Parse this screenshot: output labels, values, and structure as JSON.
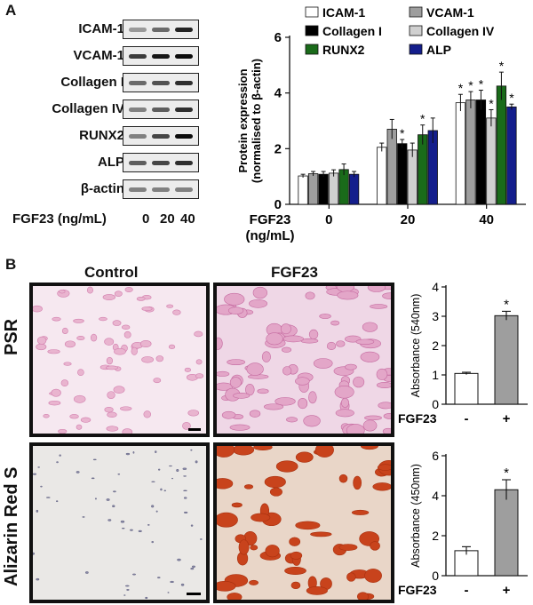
{
  "panel_a": {
    "letter": "A",
    "blot_rows": [
      {
        "label": "ICAM-1",
        "bands": [
          0.35,
          0.55,
          0.85
        ]
      },
      {
        "label": "VCAM-1",
        "bands": [
          0.75,
          0.9,
          0.95
        ]
      },
      {
        "label": "Collagen I",
        "bands": [
          0.55,
          0.65,
          0.8
        ]
      },
      {
        "label": "Collagen IV",
        "bands": [
          0.45,
          0.6,
          0.8
        ]
      },
      {
        "label": "RUNX2",
        "bands": [
          0.45,
          0.7,
          0.95
        ]
      },
      {
        "label": "ALP",
        "bands": [
          0.6,
          0.7,
          0.8
        ]
      },
      {
        "label": "β-actin",
        "bands": [
          0.45,
          0.45,
          0.45
        ]
      }
    ],
    "dose_axis_label": "FGF23 (ng/mL)",
    "dose_ticks": [
      "0",
      "20",
      "40"
    ]
  },
  "panel_b": {
    "letter": "B",
    "col_control": "Control",
    "col_fgf23": "FGF23",
    "row_psr": "PSR",
    "row_ars": "Alizarin Red S"
  },
  "chart_data": [
    {
      "type": "bar",
      "ylabel": "Protein expression\n(normalised to β-actin)",
      "xlabel": "FGF23\n(ng/mL)",
      "categories": [
        "0",
        "20",
        "40"
      ],
      "ylim": [
        0,
        6
      ],
      "yticks": [
        "0",
        "2",
        "4",
        "6"
      ],
      "series": [
        {
          "name": "ICAM-1",
          "color": "#ffffff",
          "values": [
            1.02,
            2.05,
            3.65
          ],
          "errors": [
            0.06,
            0.15,
            0.3
          ],
          "sig": [
            "",
            "",
            "*"
          ]
        },
        {
          "name": "VCAM-1",
          "color": "#9e9e9e",
          "values": [
            1.1,
            2.7,
            3.75
          ],
          "errors": [
            0.08,
            0.35,
            0.3
          ],
          "sig": [
            "",
            "",
            "*"
          ]
        },
        {
          "name": "Collagen I",
          "color": "#000000",
          "values": [
            1.08,
            2.18,
            3.75
          ],
          "errors": [
            0.1,
            0.15,
            0.35
          ],
          "sig": [
            "",
            "*",
            "*"
          ]
        },
        {
          "name": "Collagen IV",
          "color": "#d0d0d0",
          "values": [
            1.12,
            1.95,
            3.1
          ],
          "errors": [
            0.12,
            0.25,
            0.3
          ],
          "sig": [
            "",
            "",
            "*"
          ]
        },
        {
          "name": "RUNX2",
          "color": "#1a6b1a",
          "values": [
            1.25,
            2.5,
            4.25
          ],
          "errors": [
            0.2,
            0.35,
            0.5
          ],
          "sig": [
            "",
            "*",
            "*"
          ]
        },
        {
          "name": "ALP",
          "color": "#141e8c",
          "values": [
            1.08,
            2.65,
            3.5
          ],
          "errors": [
            0.1,
            0.45,
            0.1
          ],
          "sig": [
            "",
            "",
            "*"
          ]
        }
      ]
    },
    {
      "type": "bar",
      "ylabel": "Absorbance (540nm)",
      "xlabel": "FGF23",
      "categories": [
        "-",
        "+"
      ],
      "values": [
        1.05,
        3.02
      ],
      "errors": [
        0.04,
        0.15
      ],
      "sig": [
        "",
        "*"
      ],
      "colors": [
        "#ffffff",
        "#9e9e9e"
      ],
      "ylim": [
        0,
        4
      ],
      "yticks": [
        "0",
        "1",
        "2",
        "3",
        "4"
      ]
    },
    {
      "type": "bar",
      "ylabel": "Absorbance (450nm)",
      "xlabel": "FGF23",
      "categories": [
        "-",
        "+"
      ],
      "values": [
        1.25,
        4.3
      ],
      "errors": [
        0.2,
        0.5
      ],
      "sig": [
        "",
        "*"
      ],
      "colors": [
        "#ffffff",
        "#9e9e9e"
      ],
      "ylim": [
        0,
        6
      ],
      "yticks": [
        "0",
        "2",
        "4",
        "6"
      ]
    }
  ]
}
